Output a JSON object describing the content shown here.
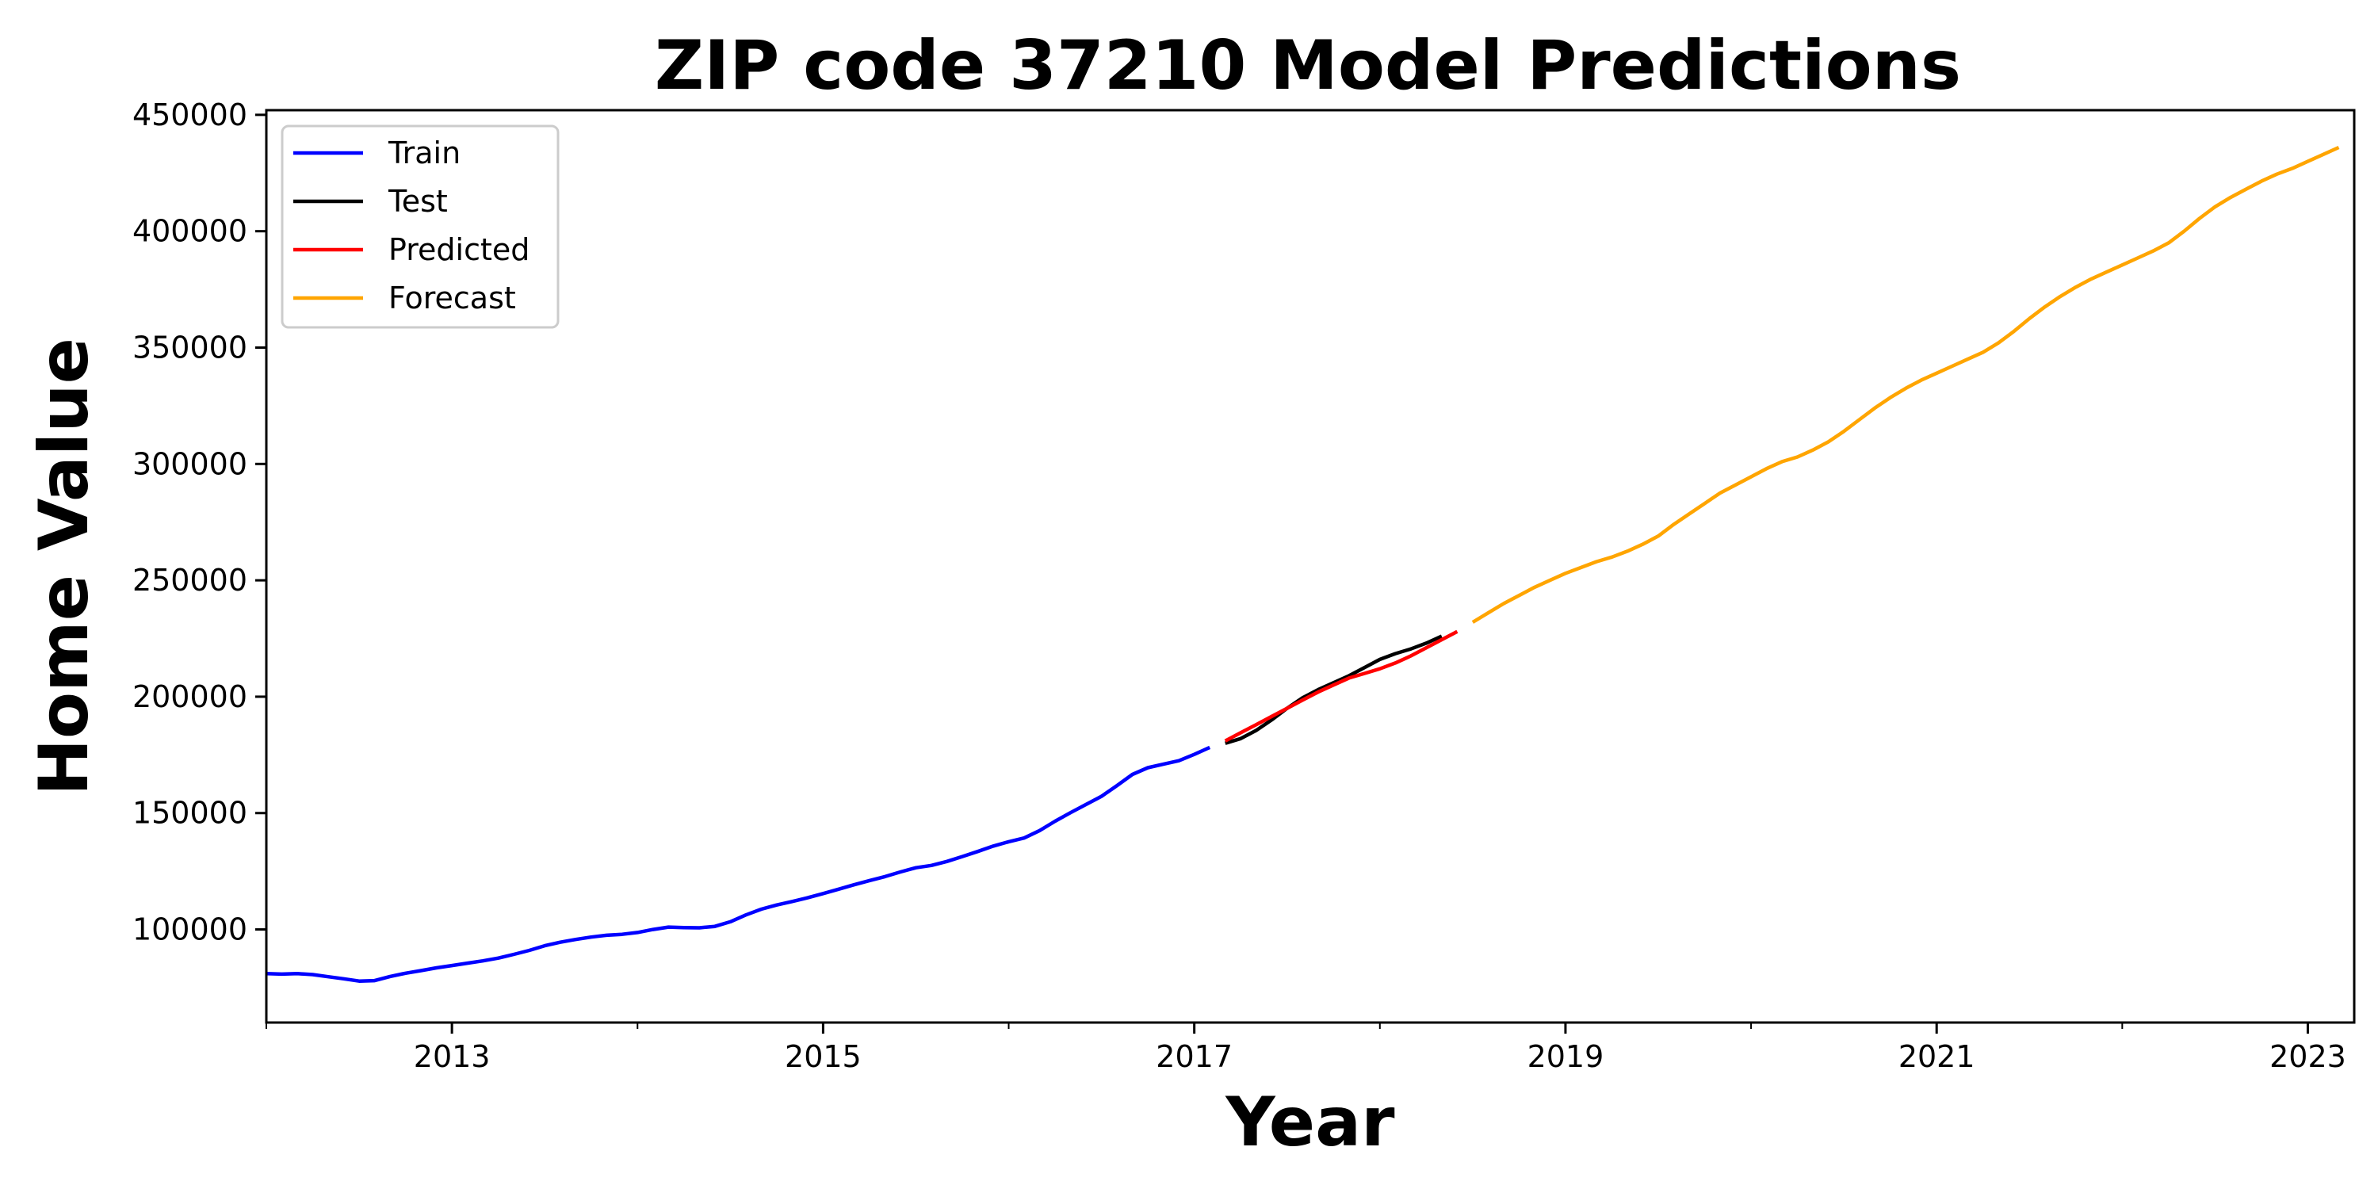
{
  "chart_data": {
    "type": "line",
    "title": "ZIP code 37210 Model Predictions",
    "xlabel": "Year",
    "ylabel": "Home Value",
    "xlim": [
      "2012-01",
      "2023-04"
    ],
    "ylim": [
      60000,
      452000
    ],
    "x_ticks": [
      "2013",
      "2015",
      "2017",
      "2019",
      "2021",
      "2023"
    ],
    "y_ticks": [
      "100000",
      "150000",
      "200000",
      "250000",
      "300000",
      "350000",
      "400000",
      "450000"
    ],
    "grid": false,
    "legend_position": "top-left",
    "series": [
      {
        "name": "Train",
        "color": "#0000ff",
        "points": [
          [
            "2012-01",
            81000
          ],
          [
            "2012-02",
            80800
          ],
          [
            "2012-03",
            81000
          ],
          [
            "2012-04",
            80600
          ],
          [
            "2012-05",
            79700
          ],
          [
            "2012-06",
            78800
          ],
          [
            "2012-07",
            77800
          ],
          [
            "2012-08",
            78000
          ],
          [
            "2012-09",
            79800
          ],
          [
            "2012-10",
            81200
          ],
          [
            "2012-11",
            82300
          ],
          [
            "2012-12",
            83500
          ],
          [
            "2013-01",
            84500
          ],
          [
            "2013-02",
            85500
          ],
          [
            "2013-03",
            86500
          ],
          [
            "2013-04",
            87700
          ],
          [
            "2013-05",
            89300
          ],
          [
            "2013-06",
            91000
          ],
          [
            "2013-07",
            93000
          ],
          [
            "2013-08",
            94500
          ],
          [
            "2013-09",
            95700
          ],
          [
            "2013-10",
            96700
          ],
          [
            "2013-11",
            97500
          ],
          [
            "2013-12",
            97900
          ],
          [
            "2014-01",
            98700
          ],
          [
            "2014-02",
            100000
          ],
          [
            "2014-03",
            101000
          ],
          [
            "2014-04",
            100800
          ],
          [
            "2014-05",
            100700
          ],
          [
            "2014-06",
            101300
          ],
          [
            "2014-07",
            103300
          ],
          [
            "2014-08",
            106200
          ],
          [
            "2014-09",
            108700
          ],
          [
            "2014-10",
            110500
          ],
          [
            "2014-11",
            112000
          ],
          [
            "2014-12",
            113600
          ],
          [
            "2015-01",
            115400
          ],
          [
            "2015-02",
            117300
          ],
          [
            "2015-03",
            119200
          ],
          [
            "2015-04",
            121000
          ],
          [
            "2015-05",
            122700
          ],
          [
            "2015-06",
            124700
          ],
          [
            "2015-07",
            126500
          ],
          [
            "2015-08",
            127500
          ],
          [
            "2015-09",
            129200
          ],
          [
            "2015-10",
            131300
          ],
          [
            "2015-11",
            133500
          ],
          [
            "2015-12",
            135800
          ],
          [
            "2016-01",
            137700
          ],
          [
            "2016-02",
            139300
          ],
          [
            "2016-03",
            142500
          ],
          [
            "2016-04",
            146500
          ],
          [
            "2016-05",
            150200
          ],
          [
            "2016-06",
            153700
          ],
          [
            "2016-07",
            157200
          ],
          [
            "2016-08",
            161800
          ],
          [
            "2016-09",
            166600
          ],
          [
            "2016-10",
            169500
          ],
          [
            "2016-11",
            171000
          ],
          [
            "2016-12",
            172500
          ],
          [
            "2017-01",
            175200
          ],
          [
            "2017-02",
            178200
          ]
        ]
      },
      {
        "name": "Test",
        "color": "#000000",
        "points": [
          [
            "2017-03",
            180000
          ],
          [
            "2017-04",
            182000
          ],
          [
            "2017-05",
            185500
          ],
          [
            "2017-06",
            190000
          ],
          [
            "2017-07",
            195000
          ],
          [
            "2017-08",
            199500
          ],
          [
            "2017-09",
            203000
          ],
          [
            "2017-10",
            206000
          ],
          [
            "2017-11",
            209000
          ],
          [
            "2017-12",
            212500
          ],
          [
            "2018-01",
            216000
          ],
          [
            "2018-02",
            218500
          ],
          [
            "2018-03",
            220500
          ],
          [
            "2018-04",
            223000
          ],
          [
            "2018-05",
            226000
          ]
        ]
      },
      {
        "name": "Predicted",
        "color": "#ff0000",
        "points": [
          [
            "2017-03",
            181000
          ],
          [
            "2017-04",
            184500
          ],
          [
            "2017-05",
            188000
          ],
          [
            "2017-06",
            191500
          ],
          [
            "2017-07",
            195000
          ],
          [
            "2017-08",
            198500
          ],
          [
            "2017-09",
            202000
          ],
          [
            "2017-10",
            205000
          ],
          [
            "2017-11",
            208000
          ],
          [
            "2017-12",
            210000
          ],
          [
            "2018-01",
            212000
          ],
          [
            "2018-02",
            214500
          ],
          [
            "2018-03",
            217500
          ],
          [
            "2018-04",
            221000
          ],
          [
            "2018-05",
            224500
          ],
          [
            "2018-06",
            228000
          ]
        ]
      },
      {
        "name": "Forecast",
        "color": "#ffa500",
        "points": [
          [
            "2018-07",
            232000
          ],
          [
            "2018-08",
            236000
          ],
          [
            "2018-09",
            240000
          ],
          [
            "2018-10",
            243500
          ],
          [
            "2018-11",
            247000
          ],
          [
            "2018-12",
            250000
          ],
          [
            "2019-01",
            253000
          ],
          [
            "2019-02",
            255500
          ],
          [
            "2019-03",
            258000
          ],
          [
            "2019-04",
            260000
          ],
          [
            "2019-05",
            262500
          ],
          [
            "2019-06",
            265500
          ],
          [
            "2019-07",
            269000
          ],
          [
            "2019-08",
            274000
          ],
          [
            "2019-09",
            278500
          ],
          [
            "2019-10",
            283000
          ],
          [
            "2019-11",
            287500
          ],
          [
            "2019-12",
            291000
          ],
          [
            "2020-01",
            294500
          ],
          [
            "2020-02",
            298000
          ],
          [
            "2020-03",
            301000
          ],
          [
            "2020-04",
            303000
          ],
          [
            "2020-05",
            306000
          ],
          [
            "2020-06",
            309500
          ],
          [
            "2020-07",
            314000
          ],
          [
            "2020-08",
            319000
          ],
          [
            "2020-09",
            324000
          ],
          [
            "2020-10",
            328500
          ],
          [
            "2020-11",
            332500
          ],
          [
            "2020-12",
            336000
          ],
          [
            "2021-01",
            339000
          ],
          [
            "2021-02",
            342000
          ],
          [
            "2021-03",
            345000
          ],
          [
            "2021-04",
            348000
          ],
          [
            "2021-05",
            352000
          ],
          [
            "2021-06",
            357000
          ],
          [
            "2021-07",
            362500
          ],
          [
            "2021-08",
            367500
          ],
          [
            "2021-09",
            372000
          ],
          [
            "2021-10",
            376000
          ],
          [
            "2021-11",
            379500
          ],
          [
            "2021-12",
            382500
          ],
          [
            "2022-01",
            385500
          ],
          [
            "2022-02",
            388500
          ],
          [
            "2022-03",
            391500
          ],
          [
            "2022-04",
            395000
          ],
          [
            "2022-05",
            400000
          ],
          [
            "2022-06",
            405500
          ],
          [
            "2022-07",
            410500
          ],
          [
            "2022-08",
            414500
          ],
          [
            "2022-09",
            418000
          ],
          [
            "2022-10",
            421500
          ],
          [
            "2022-11",
            424500
          ],
          [
            "2022-12",
            427000
          ],
          [
            "2023-01",
            430000
          ],
          [
            "2023-02",
            433000
          ],
          [
            "2023-03",
            436000
          ]
        ]
      }
    ]
  }
}
